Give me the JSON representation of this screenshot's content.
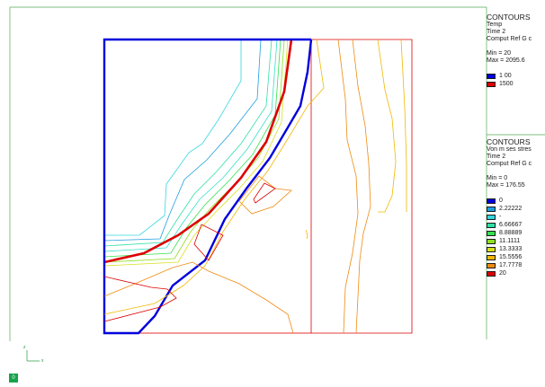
{
  "legend_temp": {
    "title": "CONTOURS",
    "variable": "Temp",
    "time": "Time 2",
    "computed": "Comput Ref G c",
    "min": "Min = 20",
    "max": "Max = 2095.6",
    "entries": [
      {
        "label": "1 00",
        "color": "#0000dd"
      },
      {
        "label": "1500",
        "color": "#dd0000"
      }
    ]
  },
  "legend_vm": {
    "title": "CONTOURS",
    "variable": "Von m ses stres",
    "time": "Time 2",
    "computed": "Comput Ref G c",
    "min": "Min = 0",
    "max": "Max = 176.55",
    "entries": [
      {
        "label": "0",
        "color": "#0000dd"
      },
      {
        "label": "2.22222",
        "color": "#1f9ee0"
      },
      {
        "label": "-",
        "color": "#35d6e0"
      },
      {
        "label": "6.66667",
        "color": "#2ee0a8"
      },
      {
        "label": "8.88889",
        "color": "#35e050"
      },
      {
        "label": "11.1111",
        "color": "#8ee020"
      },
      {
        "label": "13.3333",
        "color": "#d8e020"
      },
      {
        "label": "15.5556",
        "color": "#f2b800"
      },
      {
        "label": "17.7778",
        "color": "#f08a10"
      },
      {
        "label": "20",
        "color": "#dd0000"
      }
    ]
  },
  "triad": {
    "z_label": "z",
    "x_label": "x"
  },
  "status": {
    "badge": "0"
  },
  "colors": {
    "frame": "#55aa55",
    "domain_red": "#dd0000",
    "temp_blue": "#0000dd",
    "temp_red": "#dd0000"
  }
}
